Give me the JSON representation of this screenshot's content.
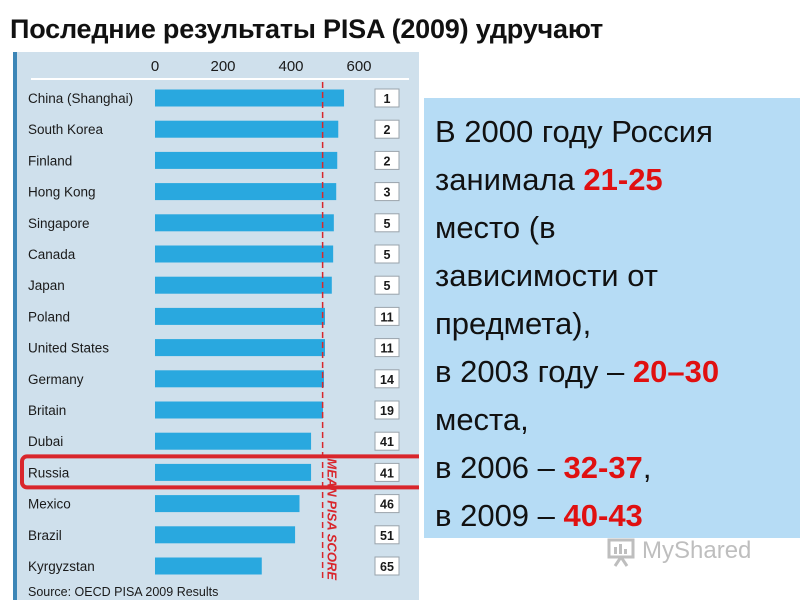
{
  "title": "Последние результаты PISA (2009) удручают",
  "chart_data": {
    "type": "bar",
    "orientation": "horizontal",
    "categories": [
      "China (Shanghai)",
      "South Korea",
      "Finland",
      "Hong Kong",
      "Singapore",
      "Canada",
      "Japan",
      "Poland",
      "United States",
      "Germany",
      "Britain",
      "Dubai",
      "Russia",
      "Mexico",
      "Brazil",
      "Kyrgyzstan"
    ],
    "values": [
      556,
      539,
      536,
      533,
      526,
      524,
      520,
      500,
      500,
      497,
      494,
      459,
      459,
      425,
      412,
      314
    ],
    "ranks": [
      "1",
      "2",
      "2",
      "3",
      "5",
      "5",
      "5",
      "11",
      "11",
      "14",
      "19",
      "41",
      "41",
      "46",
      "51",
      "65"
    ],
    "xticks": [
      "0",
      "200",
      "400",
      "600"
    ],
    "xlim": [
      0,
      700
    ],
    "reference_line": {
      "value": 493,
      "label": "MEAN PISA SCORE"
    },
    "highlight": "Russia",
    "source": "Source: OECD PISA 2009 Results",
    "colors": {
      "bar": "#29a8df",
      "reference": "#d9262c",
      "highlight_box": "#d9262c",
      "panel": "#cfe0ec",
      "rank_box": "#ffffff"
    }
  },
  "info": {
    "line1": "В 2000 году Россия",
    "line2_pre": "занимала ",
    "line2_hl": "21-25",
    "line3": "место (в",
    "line4": "зависимости от",
    "line5": "предмета),",
    "line6_pre": "в 2003 году – ",
    "line6_hl": "20–30",
    "line7": "места,",
    "line8_pre": "в 2006 – ",
    "line8_hl": "32-37",
    "line8_post": ",",
    "line9_pre": "в 2009 – ",
    "line9_hl": "40-43"
  },
  "watermark": "MyShared"
}
